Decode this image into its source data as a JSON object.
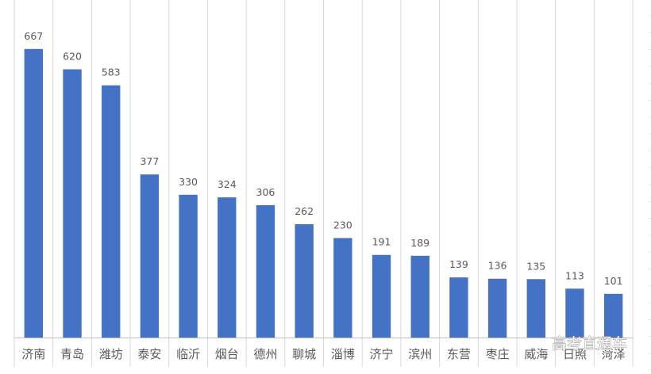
{
  "chart_data": {
    "type": "bar",
    "title": "",
    "xlabel": "",
    "ylabel": "",
    "categories": [
      "济南",
      "青岛",
      "潍坊",
      "泰安",
      "临沂",
      "烟台",
      "德州",
      "聊城",
      "淄博",
      "济宁",
      "滨州",
      "东营",
      "枣庄",
      "威海",
      "日照",
      "菏泽"
    ],
    "values": [
      667,
      620,
      583,
      377,
      330,
      324,
      306,
      262,
      230,
      191,
      189,
      139,
      136,
      135,
      113,
      101
    ],
    "ylim": [
      0,
      800
    ],
    "grid": "vertical category separators",
    "legend": "none",
    "colors": {
      "bar": "#4472C4",
      "label": "#595959",
      "grid": "#D9D9D9"
    }
  },
  "watermark": "高考直通车"
}
